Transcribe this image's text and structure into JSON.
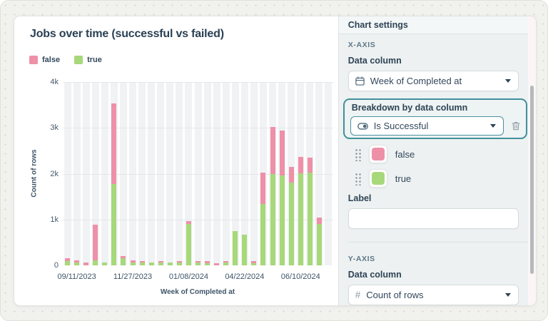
{
  "chart": {
    "title": "Jobs over time (successful vs failed)",
    "y_axis_title": "Count of rows",
    "x_axis_title": "Week of Completed at",
    "legend": [
      {
        "label": "false",
        "color": "#ee90a8"
      },
      {
        "label": "true",
        "color": "#a7d87a"
      }
    ]
  },
  "chart_data": {
    "type": "bar",
    "stacked": true,
    "title": "Jobs over time (successful vs failed)",
    "xlabel": "Week of Completed at",
    "ylabel": "Count of rows",
    "ylim": [
      0,
      4000
    ],
    "y_ticks": [
      "0",
      "1k",
      "2k",
      "3k",
      "4k"
    ],
    "grid": true,
    "legend_position": "top-left",
    "x_tick_labels": [
      "09/11/2023",
      "11/27/2023",
      "01/08/2024",
      "04/22/2024",
      "06/10/2024"
    ],
    "x_tick_slot_indices": [
      1,
      7,
      13,
      19,
      25
    ],
    "trailing_empty_slots": 1,
    "series": [
      {
        "name": "true",
        "color": "#a7d87a",
        "values": [
          100,
          70,
          0,
          110,
          60,
          1770,
          150,
          70,
          55,
          55,
          55,
          55,
          60,
          900,
          55,
          45,
          0,
          55,
          750,
          670,
          45,
          1340,
          2000,
          1960,
          1810,
          2010,
          2020,
          900
        ]
      },
      {
        "name": "false",
        "color": "#ee90a8",
        "values": [
          50,
          40,
          70,
          780,
          0,
          1760,
          60,
          40,
          45,
          0,
          45,
          0,
          40,
          60,
          40,
          45,
          50,
          40,
          0,
          0,
          45,
          680,
          1020,
          980,
          340,
          360,
          330,
          150
        ]
      }
    ]
  },
  "settings": {
    "header": "Chart settings",
    "accent_color": "#418f9b",
    "x_axis": {
      "section": "X-AXIS",
      "data_column_label": "Data column",
      "data_column_value": "Week of Completed at",
      "data_column_icon": "calendar-icon",
      "breakdown_label": "Breakdown by data column",
      "breakdown_value": "Is Successful",
      "breakdown_icon": "toggle-icon",
      "series_items": [
        {
          "label": "false",
          "color": "#ee90a8"
        },
        {
          "label": "true",
          "color": "#a7d87a"
        }
      ],
      "label_label": "Label",
      "label_value": ""
    },
    "y_axis": {
      "section": "Y-AXIS",
      "data_column_label": "Data column",
      "data_column_value": "Count of rows",
      "data_column_icon": "hash-icon"
    }
  }
}
